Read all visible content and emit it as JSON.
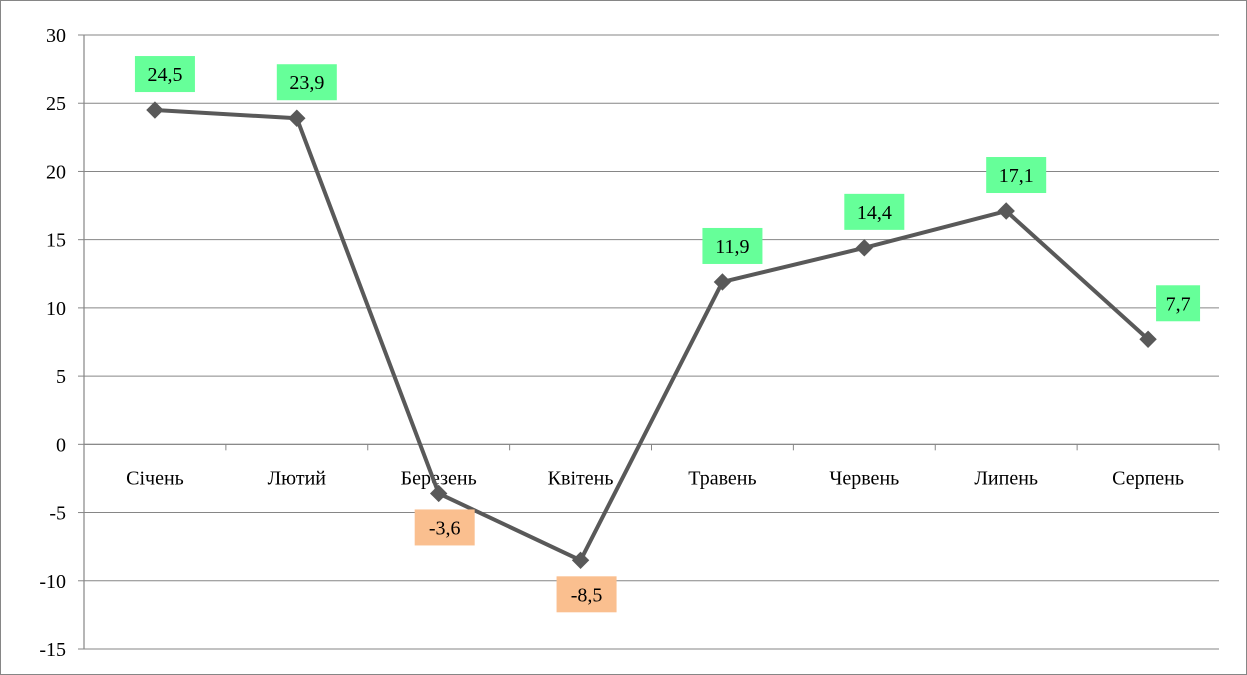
{
  "chart_data": {
    "type": "line",
    "title": "",
    "xlabel": "",
    "ylabel": "",
    "categories": [
      "Січень",
      "Лютий",
      "Березень",
      "Квітень",
      "Травень",
      "Червень",
      "Липень",
      "Серпень"
    ],
    "series": [
      {
        "values": [
          24.5,
          23.9,
          -3.6,
          -8.5,
          11.9,
          14.4,
          17.1,
          7.7
        ]
      }
    ],
    "data_labels": [
      "24,5",
      "23,9",
      "-3,6",
      "-8,5",
      "11,9",
      "14,4",
      "17,1",
      "7,7"
    ],
    "ylim": [
      -15,
      30
    ],
    "yticks": [
      30,
      25,
      20,
      15,
      10,
      5,
      0,
      -5,
      -10,
      -15
    ],
    "grid": true,
    "legend": "none",
    "colors": {
      "line": "#595959",
      "marker": "#595959",
      "label_positive_bg": "#66FF99",
      "label_negative_bg": "#FABF8F",
      "grid": "#868686"
    }
  }
}
